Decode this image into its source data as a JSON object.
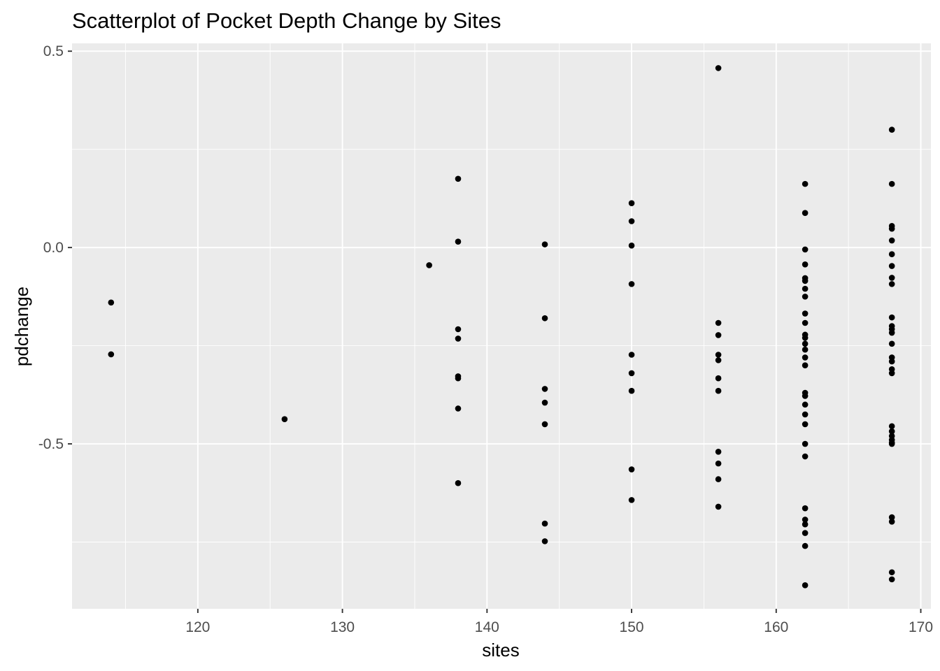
{
  "chart_data": {
    "type": "scatter",
    "title": "Scatterplot of Pocket Depth Change by Sites",
    "xlabel": "sites",
    "ylabel": "pdchange",
    "xlim": [
      111.3,
      170.7
    ],
    "ylim": [
      -0.92,
      0.52
    ],
    "x_ticks": [
      120,
      130,
      140,
      150,
      160,
      170
    ],
    "x_tick_labels": [
      "120",
      "130",
      "140",
      "150",
      "160",
      "170"
    ],
    "y_ticks": [
      0.5,
      0.0,
      -0.5
    ],
    "y_tick_labels": [
      "0.5",
      "0.0",
      "-0.5"
    ],
    "grid": true,
    "panel_background": "#ebebeb",
    "grid_color": "#ffffff",
    "point_color": "#000000",
    "points": [
      {
        "x": 114,
        "y": -0.14
      },
      {
        "x": 114,
        "y": -0.272
      },
      {
        "x": 126,
        "y": -0.437
      },
      {
        "x": 136,
        "y": -0.045
      },
      {
        "x": 138,
        "y": 0.175
      },
      {
        "x": 138,
        "y": 0.015
      },
      {
        "x": 138,
        "y": -0.208
      },
      {
        "x": 138,
        "y": -0.232
      },
      {
        "x": 138,
        "y": -0.328
      },
      {
        "x": 138,
        "y": -0.333
      },
      {
        "x": 138,
        "y": -0.41
      },
      {
        "x": 138,
        "y": -0.6
      },
      {
        "x": 144,
        "y": 0.008
      },
      {
        "x": 144,
        "y": -0.18
      },
      {
        "x": 144,
        "y": -0.36
      },
      {
        "x": 144,
        "y": -0.395
      },
      {
        "x": 144,
        "y": -0.45
      },
      {
        "x": 144,
        "y": -0.703
      },
      {
        "x": 144,
        "y": -0.748
      },
      {
        "x": 150,
        "y": 0.113
      },
      {
        "x": 150,
        "y": 0.067
      },
      {
        "x": 150,
        "y": 0.005
      },
      {
        "x": 150,
        "y": -0.093
      },
      {
        "x": 150,
        "y": -0.273
      },
      {
        "x": 150,
        "y": -0.32
      },
      {
        "x": 150,
        "y": -0.365
      },
      {
        "x": 150,
        "y": -0.565
      },
      {
        "x": 150,
        "y": -0.643
      },
      {
        "x": 156,
        "y": 0.457
      },
      {
        "x": 156,
        "y": -0.192
      },
      {
        "x": 156,
        "y": -0.223
      },
      {
        "x": 156,
        "y": -0.273
      },
      {
        "x": 156,
        "y": -0.287
      },
      {
        "x": 156,
        "y": -0.333
      },
      {
        "x": 156,
        "y": -0.365
      },
      {
        "x": 156,
        "y": -0.52
      },
      {
        "x": 156,
        "y": -0.55
      },
      {
        "x": 156,
        "y": -0.59
      },
      {
        "x": 156,
        "y": -0.66
      },
      {
        "x": 162,
        "y": 0.162
      },
      {
        "x": 162,
        "y": 0.088
      },
      {
        "x": 162,
        "y": -0.005
      },
      {
        "x": 162,
        "y": -0.043
      },
      {
        "x": 162,
        "y": -0.078
      },
      {
        "x": 162,
        "y": -0.085
      },
      {
        "x": 162,
        "y": -0.105
      },
      {
        "x": 162,
        "y": -0.125
      },
      {
        "x": 162,
        "y": -0.168
      },
      {
        "x": 162,
        "y": -0.192
      },
      {
        "x": 162,
        "y": -0.222
      },
      {
        "x": 162,
        "y": -0.23
      },
      {
        "x": 162,
        "y": -0.245
      },
      {
        "x": 162,
        "y": -0.26
      },
      {
        "x": 162,
        "y": -0.28
      },
      {
        "x": 162,
        "y": -0.3
      },
      {
        "x": 162,
        "y": -0.37
      },
      {
        "x": 162,
        "y": -0.378
      },
      {
        "x": 162,
        "y": -0.4
      },
      {
        "x": 162,
        "y": -0.425
      },
      {
        "x": 162,
        "y": -0.45
      },
      {
        "x": 162,
        "y": -0.5
      },
      {
        "x": 162,
        "y": -0.532
      },
      {
        "x": 162,
        "y": -0.664
      },
      {
        "x": 162,
        "y": -0.693
      },
      {
        "x": 162,
        "y": -0.705
      },
      {
        "x": 162,
        "y": -0.727
      },
      {
        "x": 162,
        "y": -0.76
      },
      {
        "x": 162,
        "y": -0.86
      },
      {
        "x": 168,
        "y": 0.3
      },
      {
        "x": 168,
        "y": 0.162
      },
      {
        "x": 168,
        "y": 0.055
      },
      {
        "x": 168,
        "y": 0.048
      },
      {
        "x": 168,
        "y": 0.018
      },
      {
        "x": 168,
        "y": -0.017
      },
      {
        "x": 168,
        "y": -0.047
      },
      {
        "x": 168,
        "y": -0.077
      },
      {
        "x": 168,
        "y": -0.093
      },
      {
        "x": 168,
        "y": -0.178
      },
      {
        "x": 168,
        "y": -0.2
      },
      {
        "x": 168,
        "y": -0.208
      },
      {
        "x": 168,
        "y": -0.217
      },
      {
        "x": 168,
        "y": -0.245
      },
      {
        "x": 168,
        "y": -0.28
      },
      {
        "x": 168,
        "y": -0.29
      },
      {
        "x": 168,
        "y": -0.31
      },
      {
        "x": 168,
        "y": -0.32
      },
      {
        "x": 168,
        "y": -0.455
      },
      {
        "x": 168,
        "y": -0.468
      },
      {
        "x": 168,
        "y": -0.48
      },
      {
        "x": 168,
        "y": -0.49
      },
      {
        "x": 168,
        "y": -0.497
      },
      {
        "x": 168,
        "y": -0.5
      },
      {
        "x": 168,
        "y": -0.687
      },
      {
        "x": 168,
        "y": -0.698
      },
      {
        "x": 168,
        "y": -0.827
      },
      {
        "x": 168,
        "y": -0.845
      }
    ]
  }
}
